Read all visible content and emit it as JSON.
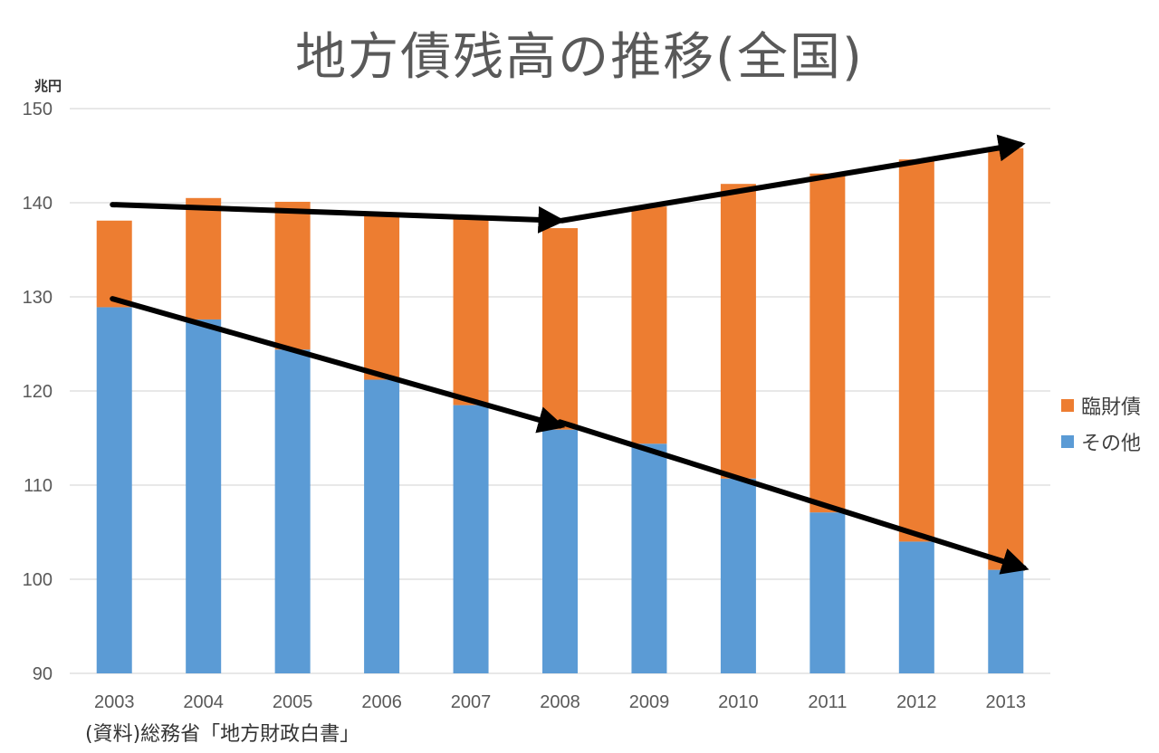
{
  "chart_data": {
    "type": "bar",
    "stacked": true,
    "title": "地方債残高の推移(全国)",
    "ylabel": "兆円",
    "xlabel": "",
    "ylim": [
      90,
      150
    ],
    "yticks": [
      90,
      100,
      110,
      120,
      130,
      140,
      150
    ],
    "grid": true,
    "legend_position": "right",
    "categories": [
      "2003",
      "2004",
      "2005",
      "2006",
      "2007",
      "2008",
      "2009",
      "2010",
      "2011",
      "2012",
      "2013"
    ],
    "series": [
      {
        "name": "その他",
        "color": "#5b9bd5",
        "values": [
          128.9,
          127.6,
          124.4,
          121.2,
          118.5,
          115.9,
          114.4,
          110.7,
          107.1,
          104.0,
          101.0
        ]
      },
      {
        "name": "臨財債",
        "color": "#ed7d31",
        "values": [
          9.2,
          12.9,
          15.7,
          17.4,
          19.9,
          21.4,
          25.2,
          31.3,
          36.0,
          40.6,
          44.8
        ]
      }
    ],
    "totals": [
      138.1,
      140.5,
      140.1,
      138.6,
      138.4,
      137.3,
      139.6,
      142.0,
      143.1,
      144.6,
      145.8
    ],
    "annotations": [
      {
        "type": "arrow",
        "from": [
          "2003",
          139.8
        ],
        "to": [
          "2008",
          138.1
        ],
        "meaning": "total roughly flat/declining"
      },
      {
        "type": "arrow",
        "from": [
          "2008",
          138.1
        ],
        "to": [
          "2013",
          146.2
        ],
        "meaning": "total rising"
      },
      {
        "type": "arrow",
        "from": [
          "2003",
          129.8
        ],
        "to": [
          "2008",
          116.3
        ],
        "meaning": "その他 declining"
      },
      {
        "type": "arrow",
        "from": [
          "2008",
          116.7
        ],
        "to": [
          "2013",
          101.2
        ],
        "meaning": "その他 declining"
      }
    ],
    "source": "(資料)総務省「地方財政白書」"
  }
}
